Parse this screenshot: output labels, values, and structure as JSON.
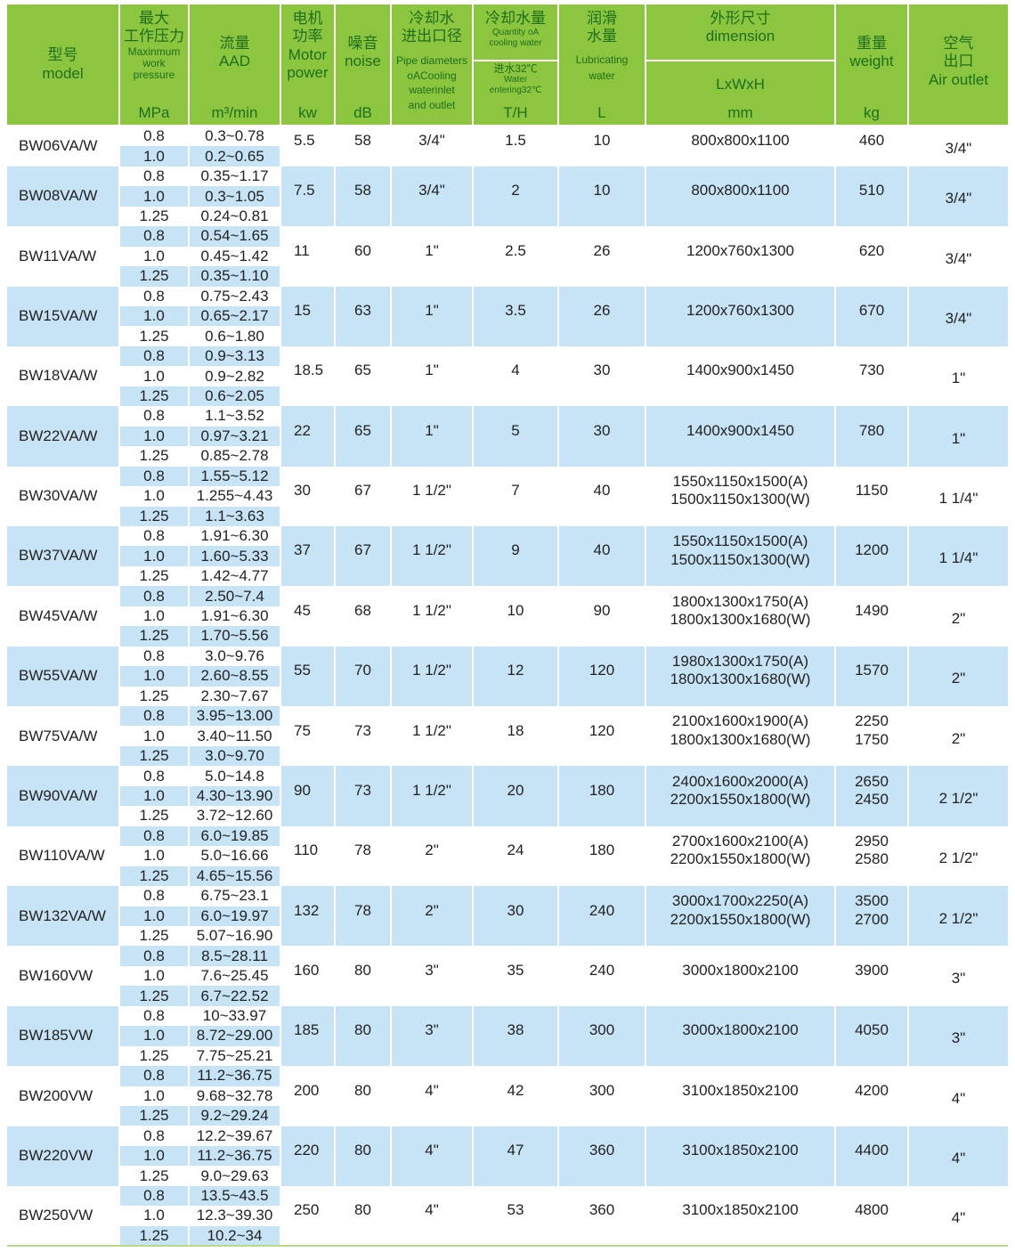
{
  "colors": {
    "header_bg": "#8cc63e",
    "header_text": "#1f6e1f",
    "stripe_blue": "#c7e3f6"
  },
  "header": {
    "model": {
      "cn": "型号",
      "en": "model"
    },
    "pressure": {
      "cn": "最大\n工作压力",
      "en": "Maxinmum\nwork\npressure",
      "unit": "MPa"
    },
    "flow": {
      "cn": "流量",
      "en": "AAD",
      "unit": "m³/min"
    },
    "power": {
      "cn": "电机\n功率",
      "en": "Motor\npower",
      "unit": "kw"
    },
    "noise": {
      "cn": "噪音",
      "en": "noise",
      "unit": "dB"
    },
    "pipe": {
      "cn": "冷却水\n进出口径",
      "en": "Pipe diameters\noACooling\nwaterinlet\nand outlet"
    },
    "water": {
      "cn": "冷却水量",
      "en": "Quantity oA\ncooling water",
      "cn2": "进水32℃",
      "en2": "Water\nentering32℃",
      "unit": "T/H"
    },
    "lub": {
      "cn": "润滑\n水量",
      "en": "Lubricating\nwater",
      "unit": "L"
    },
    "dim": {
      "cn": "外形尺寸",
      "en": "dimension",
      "en2": "LxWxH",
      "unit": "mm"
    },
    "weight": {
      "cn": "重量",
      "en": "weight",
      "unit": "kg"
    },
    "air": {
      "cn": "空气\n出口",
      "en": "Air outlet"
    }
  },
  "rows": [
    {
      "model": "BW06VA/W",
      "sub": [
        [
          "0.8",
          "0.3~0.78"
        ],
        [
          "1.0",
          "0.2~0.65"
        ]
      ],
      "power": "5.5",
      "noise": "58",
      "pipe": "3/4\"",
      "water": "1.5",
      "lub": "10",
      "dim": "800x800x1100",
      "weight": "460",
      "air": "3/4\""
    },
    {
      "model": "BW08VA/W",
      "sub": [
        [
          "0.8",
          "0.35~1.17"
        ],
        [
          "1.0",
          "0.3~1.05"
        ],
        [
          "1.25",
          "0.24~0.81"
        ]
      ],
      "power": "7.5",
      "noise": "58",
      "pipe": "3/4\"",
      "water": "2",
      "lub": "10",
      "dim": "800x800x1100",
      "weight": "510",
      "air": "3/4\""
    },
    {
      "model": "BW11VA/W",
      "sub": [
        [
          "0.8",
          "0.54~1.65"
        ],
        [
          "1.0",
          "0.45~1.42"
        ],
        [
          "1.25",
          "0.35~1.10"
        ]
      ],
      "power": "11",
      "noise": "60",
      "pipe": "1\"",
      "water": "2.5",
      "lub": "26",
      "dim": "1200x760x1300",
      "weight": "620",
      "air": "3/4\""
    },
    {
      "model": "BW15VA/W",
      "sub": [
        [
          "0.8",
          "0.75~2.43"
        ],
        [
          "1.0",
          "0.65~2.17"
        ],
        [
          "1.25",
          "0.6~1.80"
        ]
      ],
      "power": "15",
      "noise": "63",
      "pipe": "1\"",
      "water": "3.5",
      "lub": "26",
      "dim": "1200x760x1300",
      "weight": "670",
      "air": "3/4\""
    },
    {
      "model": "BW18VA/W",
      "sub": [
        [
          "0.8",
          "0.9~3.13"
        ],
        [
          "1.0",
          "0.9~2.82"
        ],
        [
          "1.25",
          "0.6~2.05"
        ]
      ],
      "power": "18.5",
      "noise": "65",
      "pipe": "1\"",
      "water": "4",
      "lub": "30",
      "dim": "1400x900x1450",
      "weight": "730",
      "air": "1\""
    },
    {
      "model": "BW22VA/W",
      "sub": [
        [
          "0.8",
          "1.1~3.52"
        ],
        [
          "1.0",
          "0.97~3.21"
        ],
        [
          "1.25",
          "0.85~2.78"
        ]
      ],
      "power": "22",
      "noise": "65",
      "pipe": "1\"",
      "water": "5",
      "lub": "30",
      "dim": "1400x900x1450",
      "weight": "780",
      "air": "1\""
    },
    {
      "model": "BW30VA/W",
      "sub": [
        [
          "0.8",
          "1.55~5.12"
        ],
        [
          "1.0",
          "1.255~4.43"
        ],
        [
          "1.25",
          "1.1~3.63"
        ]
      ],
      "power": "30",
      "noise": "67",
      "pipe": "1 1/2\"",
      "water": "7",
      "lub": "40",
      "dim": "1550x1150x1500(A)\n1500x1150x1300(W)",
      "weight": "1150",
      "air": "1 1/4\""
    },
    {
      "model": "BW37VA/W",
      "sub": [
        [
          "0.8",
          "1.91~6.30"
        ],
        [
          "1.0",
          "1.60~5.33"
        ],
        [
          "1.25",
          "1.42~4.77"
        ]
      ],
      "power": "37",
      "noise": "67",
      "pipe": "1 1/2\"",
      "water": "9",
      "lub": "40",
      "dim": "1550x1150x1500(A)\n1500x1150x1300(W)",
      "weight": "1200",
      "air": "1 1/4\""
    },
    {
      "model": "BW45VA/W",
      "sub": [
        [
          "0.8",
          "2.50~7.4"
        ],
        [
          "1.0",
          "1.91~6.30"
        ],
        [
          "1.25",
          "1.70~5.56"
        ]
      ],
      "power": "45",
      "noise": "68",
      "pipe": "1 1/2\"",
      "water": "10",
      "lub": "90",
      "dim": "1800x1300x1750(A)\n1800x1300x1680(W)",
      "weight": "1490",
      "air": "2\""
    },
    {
      "model": "BW55VA/W",
      "sub": [
        [
          "0.8",
          "3.0~9.76"
        ],
        [
          "1.0",
          "2.60~8.55"
        ],
        [
          "1.25",
          "2.30~7.67"
        ]
      ],
      "power": "55",
      "noise": "70",
      "pipe": "1 1/2\"",
      "water": "12",
      "lub": "120",
      "dim": "1980x1300x1750(A)\n1800x1300x1680(W)",
      "weight": "1570",
      "air": "2\""
    },
    {
      "model": "BW75VA/W",
      "sub": [
        [
          "0.8",
          "3.95~13.00"
        ],
        [
          "1.0",
          "3.40~11.50"
        ],
        [
          "1.25",
          "3.0~9.70"
        ]
      ],
      "power": "75",
      "noise": "73",
      "pipe": "1 1/2\"",
      "water": "18",
      "lub": "120",
      "dim": "2100x1600x1900(A)\n1800x1300x1680(W)",
      "weight": "2250\n1750",
      "air": "2\""
    },
    {
      "model": "BW90VA/W",
      "sub": [
        [
          "0.8",
          "5.0~14.8"
        ],
        [
          "1.0",
          "4.30~13.90"
        ],
        [
          "1.25",
          "3.72~12.60"
        ]
      ],
      "power": "90",
      "noise": "73",
      "pipe": "1 1/2\"",
      "water": "20",
      "lub": "180",
      "dim": "2400x1600x2000(A)\n2200x1550x1800(W)",
      "weight": "2650\n2450",
      "air": "2 1/2\""
    },
    {
      "model": "BW110VA/W",
      "sub": [
        [
          "0.8",
          "6.0~19.85"
        ],
        [
          "1.0",
          "5.0~16.66"
        ],
        [
          "1.25",
          "4.65~15.56"
        ]
      ],
      "power": "110",
      "noise": "78",
      "pipe": "2\"",
      "water": "24",
      "lub": "180",
      "dim": "2700x1600x2100(A)\n2200x1550x1800(W)",
      "weight": "2950\n2580",
      "air": "2 1/2\""
    },
    {
      "model": "BW132VA/W",
      "sub": [
        [
          "0.8",
          "6.75~23.1"
        ],
        [
          "1.0",
          "6.0~19.97"
        ],
        [
          "1.25",
          "5.07~16.90"
        ]
      ],
      "power": "132",
      "noise": "78",
      "pipe": "2\"",
      "water": "30",
      "lub": "240",
      "dim": "3000x1700x2250(A)\n2200x1550x1800(W)",
      "weight": "3500\n2700",
      "air": "2 1/2\""
    },
    {
      "model": "BW160VW",
      "sub": [
        [
          "0.8",
          "8.5~28.11"
        ],
        [
          "1.0",
          "7.6~25.45"
        ],
        [
          "1.25",
          "6.7~22.52"
        ]
      ],
      "power": "160",
      "noise": "80",
      "pipe": "3\"",
      "water": "35",
      "lub": "240",
      "dim": "3000x1800x2100",
      "weight": "3900",
      "air": "3\""
    },
    {
      "model": "BW185VW",
      "sub": [
        [
          "0.8",
          "10~33.97"
        ],
        [
          "1.0",
          "8.72~29.00"
        ],
        [
          "1.25",
          "7.75~25.21"
        ]
      ],
      "power": "185",
      "noise": "80",
      "pipe": "3\"",
      "water": "38",
      "lub": "300",
      "dim": "3000x1800x2100",
      "weight": "4050",
      "air": "3\""
    },
    {
      "model": "BW200VW",
      "sub": [
        [
          "0.8",
          "11.2~36.75"
        ],
        [
          "1.0",
          "9.68~32.78"
        ],
        [
          "1.25",
          "9.2~29.24"
        ]
      ],
      "power": "200",
      "noise": "80",
      "pipe": "4\"",
      "water": "42",
      "lub": "300",
      "dim": "3100x1850x2100",
      "weight": "4200",
      "air": "4\""
    },
    {
      "model": "BW220VW",
      "sub": [
        [
          "0.8",
          "12.2~39.67"
        ],
        [
          "1.0",
          "11.2~36.75"
        ],
        [
          "1.25",
          "9.0~29.63"
        ]
      ],
      "power": "220",
      "noise": "80",
      "pipe": "4\"",
      "water": "47",
      "lub": "360",
      "dim": "3100x1850x2100",
      "weight": "4400",
      "air": "4\""
    },
    {
      "model": "BW250VW",
      "sub": [
        [
          "0.8",
          "13.5~43.5"
        ],
        [
          "1.0",
          "12.3~39.30"
        ],
        [
          "1.25",
          "10.2~34"
        ]
      ],
      "power": "250",
      "noise": "80",
      "pipe": "4\"",
      "water": "53",
      "lub": "360",
      "dim": "3100x1850x2100",
      "weight": "4800",
      "air": "4\""
    }
  ]
}
